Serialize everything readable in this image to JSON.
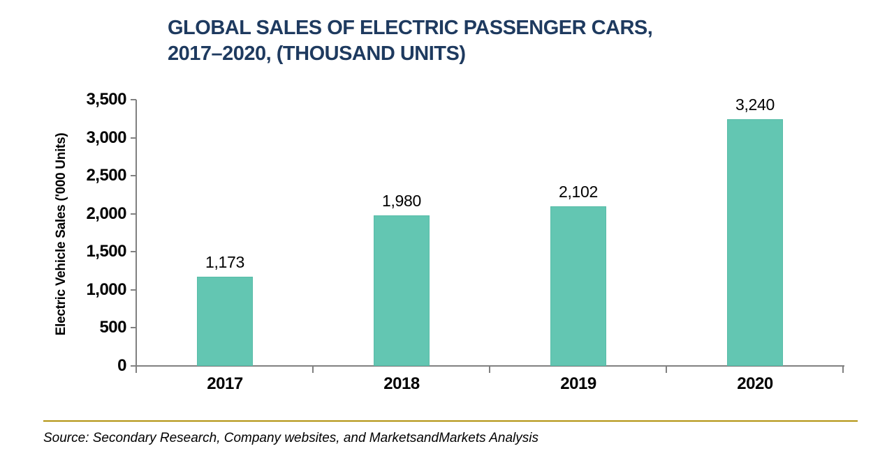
{
  "title": {
    "line1": "GLOBAL SALES OF ELECTRIC PASSENGER CARS,",
    "line2": "2017–2020, (THOUSAND UNITS)"
  },
  "chart_data": {
    "type": "bar",
    "categories": [
      "2017",
      "2018",
      "2019",
      "2020"
    ],
    "values": [
      1173,
      1980,
      2102,
      3240
    ],
    "value_labels": [
      "1,173",
      "1,980",
      "2,102",
      "3,240"
    ],
    "title": "GLOBAL SALES OF ELECTRIC PASSENGER CARS, 2017–2020, (THOUSAND UNITS)",
    "xlabel": "",
    "ylabel": "Electric Vehicle Sales ('000 Units)",
    "ylim": [
      0,
      3500
    ],
    "yticks": [
      0,
      500,
      1000,
      1500,
      2000,
      2500,
      3000,
      3500
    ],
    "ytick_labels": [
      "0",
      "500",
      "1,000",
      "1,500",
      "2,000",
      "2,500",
      "3,000",
      "3,500"
    ],
    "grid": false,
    "legend": "none",
    "bar_color": "#63C6B2"
  },
  "footer": {
    "source": "Source: Secondary Research, Company websites, and MarketsandMarkets Analysis"
  },
  "colors": {
    "title_text": "#1E3A5F",
    "bar_fill": "#63C6B2",
    "bar_border": "#58BCA8",
    "axis": "#808080",
    "divider": "#B2920E",
    "label_text": "#000000"
  }
}
